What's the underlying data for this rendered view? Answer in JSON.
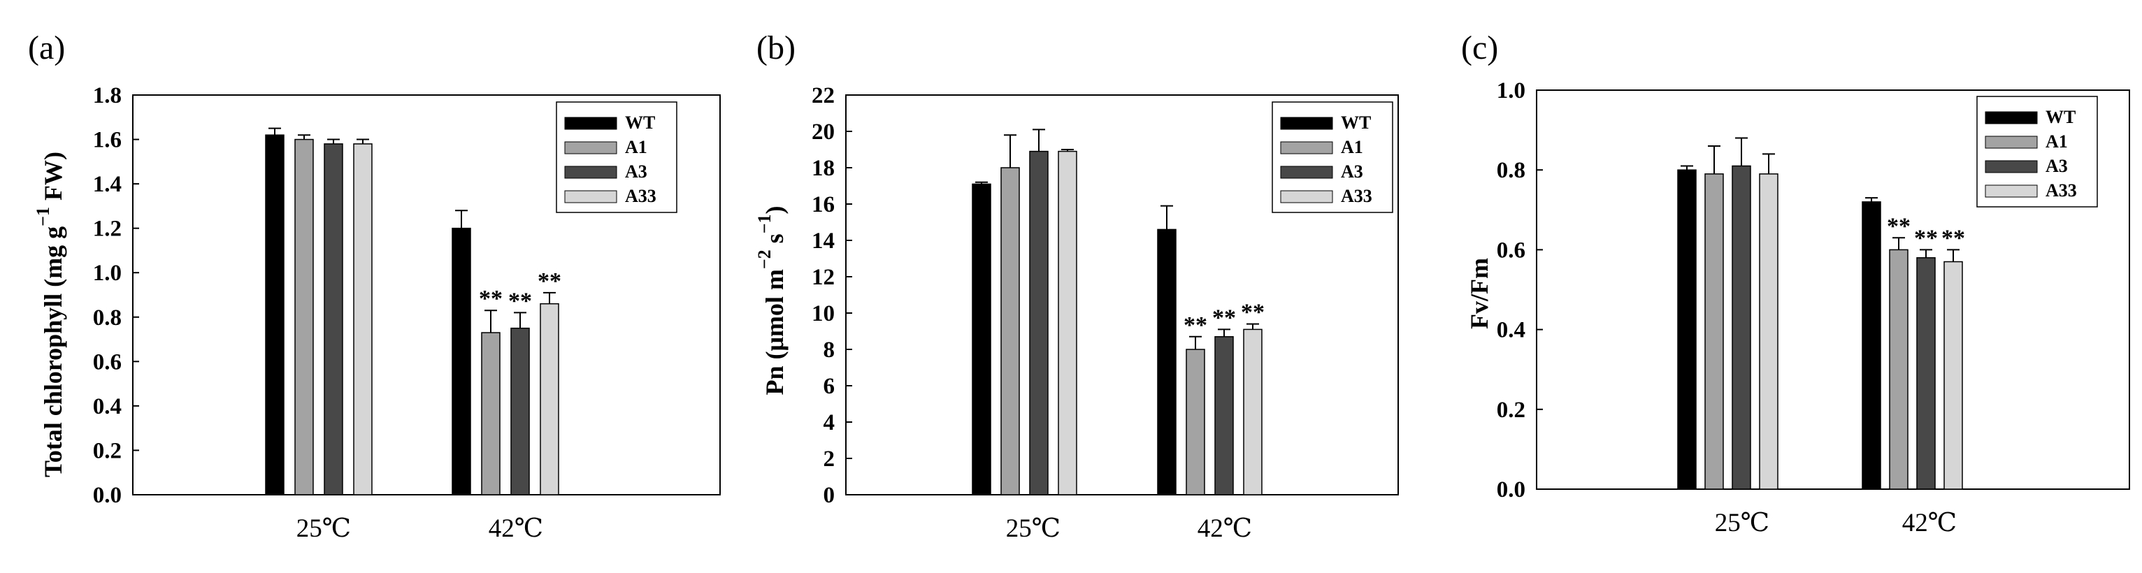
{
  "colors": {
    "WT": "#000000",
    "A1": "#a3a3a3",
    "A3": "#484848",
    "A33": "#d6d6d6",
    "axis": "#000000"
  },
  "chart_data": [
    {
      "panel": "(a)",
      "type": "bar",
      "ylabel": "Total chlorophyll (mg g",
      "ylabel_sup": "−1",
      "ylabel_tail": " FW)",
      "ylim": [
        0,
        1.8
      ],
      "yticks": [
        "0.0",
        "0.2",
        "0.4",
        "0.6",
        "0.8",
        "1.0",
        "1.2",
        "1.4",
        "1.6",
        "1.8"
      ],
      "categories": [
        "25℃",
        "42℃"
      ],
      "series": [
        {
          "name": "WT",
          "values": [
            1.62,
            1.2
          ],
          "errors": [
            0.03,
            0.08
          ],
          "sig": [
            "",
            ""
          ]
        },
        {
          "name": "A1",
          "values": [
            1.6,
            0.73
          ],
          "errors": [
            0.02,
            0.1
          ],
          "sig": [
            "",
            "**"
          ]
        },
        {
          "name": "A3",
          "values": [
            1.58,
            0.75
          ],
          "errors": [
            0.02,
            0.07
          ],
          "sig": [
            "",
            "**"
          ]
        },
        {
          "name": "A33",
          "values": [
            1.58,
            0.86
          ],
          "errors": [
            0.02,
            0.05
          ],
          "sig": [
            "",
            "**"
          ]
        }
      ],
      "legend": [
        "WT",
        "A1",
        "A3",
        "A33"
      ]
    },
    {
      "panel": "(b)",
      "type": "bar",
      "ylabel": "Pn (μmol m",
      "ylabel_sup": "−2",
      "ylabel_mid": " s",
      "ylabel_sup2": "−1",
      "ylabel_tail": ")",
      "ylim": [
        0,
        22
      ],
      "yticks": [
        "0",
        "2",
        "4",
        "6",
        "8",
        "10",
        "12",
        "14",
        "16",
        "18",
        "20",
        "22"
      ],
      "categories": [
        "25℃",
        "42℃"
      ],
      "series": [
        {
          "name": "WT",
          "values": [
            17.1,
            14.6
          ],
          "errors": [
            0.1,
            1.3
          ],
          "sig": [
            "",
            ""
          ]
        },
        {
          "name": "A1",
          "values": [
            18.0,
            8.0
          ],
          "errors": [
            1.8,
            0.7
          ],
          "sig": [
            "",
            "**"
          ]
        },
        {
          "name": "A3",
          "values": [
            18.9,
            8.7
          ],
          "errors": [
            1.2,
            0.4
          ],
          "sig": [
            "",
            "**"
          ]
        },
        {
          "name": "A33",
          "values": [
            18.9,
            9.1
          ],
          "errors": [
            0.1,
            0.3
          ],
          "sig": [
            "",
            "**"
          ]
        }
      ],
      "legend": [
        "WT",
        "A1",
        "A3",
        "A33"
      ]
    },
    {
      "panel": "(c)",
      "type": "bar",
      "ylabel": "Fv/Fm",
      "ylim": [
        0,
        1.0
      ],
      "yticks": [
        "0.0",
        "0.2",
        "0.4",
        "0.6",
        "0.8",
        "1.0"
      ],
      "categories": [
        "25℃",
        "42℃"
      ],
      "series": [
        {
          "name": "WT",
          "values": [
            0.8,
            0.72
          ],
          "errors": [
            0.01,
            0.01
          ],
          "sig": [
            "",
            ""
          ]
        },
        {
          "name": "A1",
          "values": [
            0.79,
            0.6
          ],
          "errors": [
            0.07,
            0.03
          ],
          "sig": [
            "",
            "**"
          ]
        },
        {
          "name": "A3",
          "values": [
            0.81,
            0.58
          ],
          "errors": [
            0.07,
            0.02
          ],
          "sig": [
            "",
            "**"
          ]
        },
        {
          "name": "A33",
          "values": [
            0.79,
            0.57
          ],
          "errors": [
            0.05,
            0.03
          ],
          "sig": [
            "",
            "**"
          ]
        }
      ],
      "legend": [
        "WT",
        "A1",
        "A3",
        "A33"
      ]
    }
  ]
}
